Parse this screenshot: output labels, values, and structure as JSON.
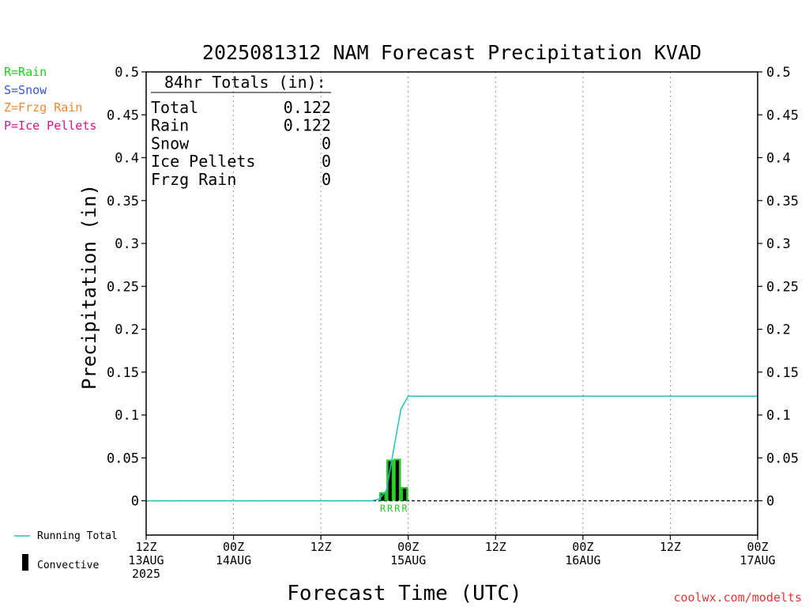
{
  "chart_data": {
    "type": "bar",
    "title": "2025081312 NAM Forecast Precipitation KVAD",
    "xlabel": "Forecast Time (UTC)",
    "ylabel": "Precipitation (in)",
    "ylim": [
      -0.04,
      0.5
    ],
    "y_ticks": [
      0,
      0.05,
      0.1,
      0.15,
      0.2,
      0.25,
      0.3,
      0.35,
      0.4,
      0.45,
      0.5
    ],
    "y_tick_labels": [
      "0",
      "0.05",
      "0.1",
      "0.15",
      "0.2",
      "0.25",
      "0.3",
      "0.35",
      "0.4",
      "0.45",
      "0.5"
    ],
    "x_unit": "forecast hour",
    "xlim": [
      0,
      84
    ],
    "x_ticks": [
      {
        "hour": 0,
        "line1": "12Z",
        "line2": "13AUG",
        "line3": "2025"
      },
      {
        "hour": 12,
        "line1": "00Z",
        "line2": "14AUG",
        "line3": ""
      },
      {
        "hour": 24,
        "line1": "12Z",
        "line2": "",
        "line3": ""
      },
      {
        "hour": 36,
        "line1": "00Z",
        "line2": "15AUG",
        "line3": ""
      },
      {
        "hour": 48,
        "line1": "12Z",
        "line2": "",
        "line3": ""
      },
      {
        "hour": 60,
        "line1": "00Z",
        "line2": "16AUG",
        "line3": ""
      },
      {
        "hour": 72,
        "line1": "12Z",
        "line2": "",
        "line3": ""
      },
      {
        "hour": 84,
        "line1": "00Z",
        "line2": "17AUG",
        "line3": ""
      }
    ],
    "grid": "vertical dotted",
    "precip_bars": [
      {
        "hour": 33,
        "value": 0.01,
        "convective": 0.008,
        "type": "R"
      },
      {
        "hour": 34,
        "value": 0.048,
        "convective": 0.046,
        "type": "R"
      },
      {
        "hour": 35,
        "value": 0.049,
        "convective": 0.047,
        "type": "R"
      },
      {
        "hour": 36,
        "value": 0.016,
        "convective": 0.014,
        "type": "R"
      }
    ],
    "running_total": {
      "name": "Running Total",
      "x": [
        0,
        31,
        32,
        33,
        34,
        35,
        36,
        84
      ],
      "y": [
        0,
        0,
        0.002,
        0.012,
        0.06,
        0.107,
        0.122,
        0.122
      ]
    },
    "colors": {
      "running_total": "#20c0c0",
      "rain_bar": "#22cc22",
      "convective": "#000000",
      "rain_label": "#22cc22",
      "snow_label": "#3355dd",
      "frzg_label": "#ee8833",
      "ice_label": "#dd1188",
      "credit": "#ee3333"
    }
  },
  "type_legend": [
    {
      "text": "R=Rain",
      "color": "#22cc22"
    },
    {
      "text": "S=Snow",
      "color": "#3355dd"
    },
    {
      "text": "Z=Frzg Rain",
      "color": "#ee8833"
    },
    {
      "text": "P=Ice Pellets",
      "color": "#dd1188"
    }
  ],
  "totals_box": {
    "heading": "84hr Totals (in):",
    "rows": [
      {
        "label": "Total",
        "value": "0.122"
      },
      {
        "label": "Rain",
        "value": "0.122"
      },
      {
        "label": "Snow",
        "value": "0"
      },
      {
        "label": "Ice Pellets",
        "value": "0"
      },
      {
        "label": "Frzg Rain",
        "value": "0"
      }
    ]
  },
  "legend": {
    "running_total": "Running Total",
    "convective": "Convective"
  },
  "credit": "coolwx.com/modelts"
}
